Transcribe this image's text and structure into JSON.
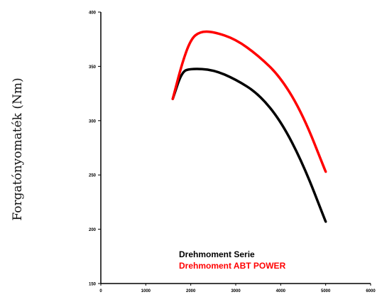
{
  "chart_data": {
    "type": "line",
    "ylabel": "Forgatónyomaték (Nm)",
    "xlabel": "",
    "x_ticks": [
      0,
      1000,
      2000,
      3000,
      4000,
      5000,
      6000
    ],
    "y_ticks": [
      150,
      200,
      250,
      300,
      350,
      400
    ],
    "xlim": [
      0,
      6000
    ],
    "ylim": [
      150,
      400
    ],
    "grid": false,
    "legend_position": "bottom-left inside",
    "series": [
      {
        "name": "Drehmoment Serie",
        "color": "#000000",
        "x": [
          1600,
          1800,
          2000,
          2500,
          3000,
          3500,
          4000,
          4500,
          5000
        ],
        "y": [
          320,
          345,
          348,
          347,
          338,
          325,
          300,
          260,
          207
        ]
      },
      {
        "name": "Drehmoment ABT POWER",
        "color": "#ff0000",
        "x": [
          1600,
          1800,
          2000,
          2200,
          2500,
          3000,
          3500,
          4000,
          4500,
          5000
        ],
        "y": [
          320,
          352,
          375,
          382,
          382,
          375,
          360,
          340,
          305,
          253
        ]
      }
    ]
  }
}
